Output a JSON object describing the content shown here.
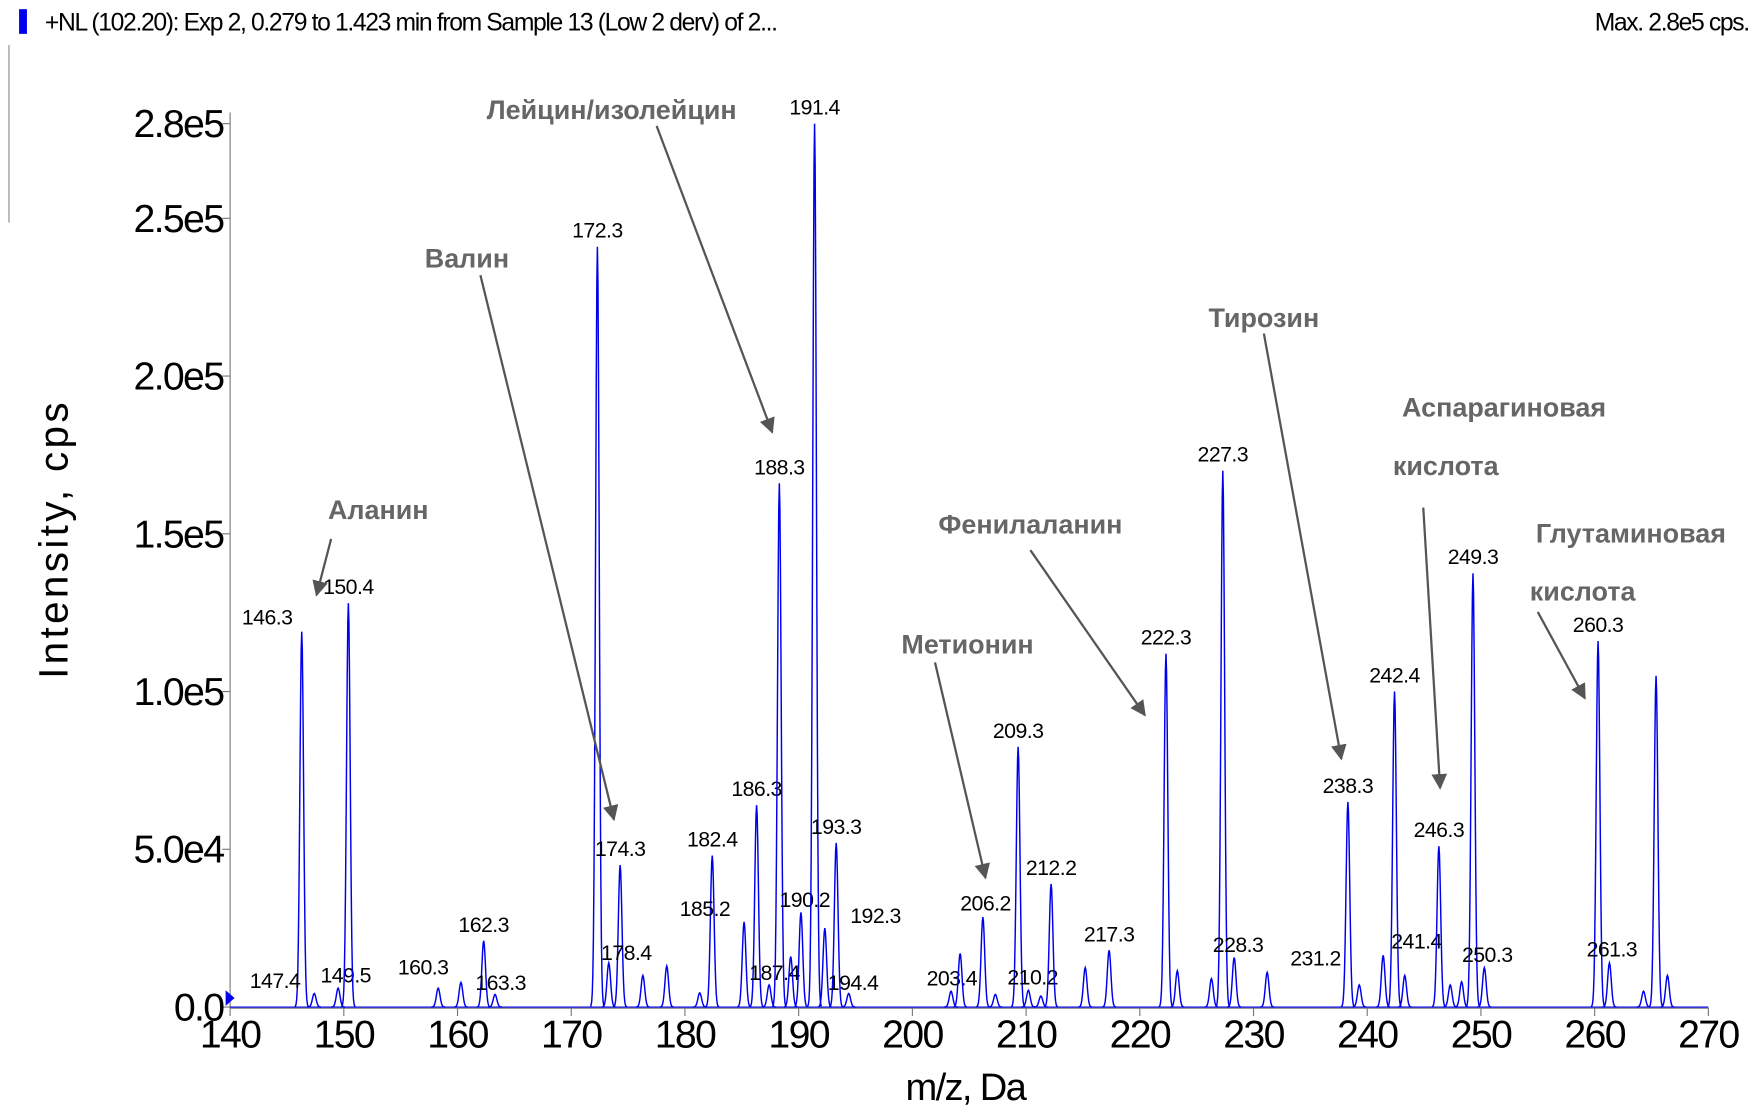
{
  "chart_data": {
    "type": "spectrum",
    "header": "+NL (102.20): Exp 2, 0.279 to 1.423 min from Sample 13 (Low 2 derv) of 2...",
    "max_label": "Max. 2.8e5 cps.",
    "xlabel": "m/z, Da",
    "ylabel": "Intensity, cps",
    "color": "#0000ee",
    "xlim": [
      140,
      270
    ],
    "ylim": [
      0,
      280000
    ],
    "xticks": [
      140,
      150,
      160,
      170,
      180,
      190,
      200,
      210,
      220,
      230,
      240,
      250,
      260,
      270
    ],
    "yticks": [
      {
        "value": 0,
        "label": "0.0"
      },
      {
        "value": 50000,
        "label": "5.0e4"
      },
      {
        "value": 100000,
        "label": "1.0e5"
      },
      {
        "value": 150000,
        "label": "1.5e5"
      },
      {
        "value": 200000,
        "label": "2.0e5"
      },
      {
        "value": 250000,
        "label": "2.5e5"
      },
      {
        "value": 280000,
        "label": "2.8e5"
      }
    ],
    "x": [
      146.3,
      147.4,
      149.5,
      150.4,
      158.3,
      160.3,
      162.3,
      163.3,
      172.3,
      173.3,
      174.3,
      176.3,
      178.4,
      181.3,
      182.4,
      185.2,
      186.3,
      187.4,
      188.3,
      189.3,
      190.2,
      191.4,
      192.3,
      193.3,
      194.4,
      203.4,
      204.2,
      206.2,
      207.3,
      209.3,
      210.2,
      211.3,
      212.2,
      215.2,
      217.3,
      222.3,
      223.3,
      226.3,
      227.3,
      228.3,
      231.2,
      238.3,
      239.3,
      241.4,
      242.4,
      243.3,
      246.3,
      247.3,
      248.3,
      249.3,
      250.3,
      260.3,
      261.3,
      264.3,
      265.4,
      266.4
    ],
    "values": [
      119000,
      4300,
      6000,
      128000,
      6000,
      7800,
      21000,
      4000,
      241000,
      14000,
      45000,
      10000,
      13000,
      4500,
      48000,
      27000,
      64000,
      7000,
      166000,
      16000,
      30000,
      280000,
      25000,
      52000,
      4300,
      5000,
      17000,
      28500,
      4000,
      82500,
      5300,
      3500,
      39000,
      12500,
      18000,
      112000,
      11500,
      9000,
      170000,
      15700,
      11000,
      65000,
      7000,
      16400,
      100000,
      10000,
      51000,
      7000,
      8000,
      137500,
      12500,
      116000,
      14000,
      5000,
      105000,
      10000
    ],
    "peak_labels": [
      "146.3",
      "147.4",
      "149.5",
      "150.4",
      null,
      "160.3",
      "162.3",
      "163.3",
      "172.3",
      null,
      "174.3",
      null,
      "178.4",
      null,
      "182.4",
      "185.2",
      "186.3",
      "187.4",
      "188.3",
      null,
      "190.2",
      "191.4",
      "192.3",
      "193.3",
      "194.4",
      "203.4",
      null,
      "206.2",
      null,
      "209.3",
      "210.2",
      null,
      "212.2",
      null,
      "217.3",
      "222.3",
      null,
      null,
      "227.3",
      "228.3",
      "231.2",
      "238.3",
      null,
      "241.4",
      "242.4",
      null,
      "246.3",
      null,
      null,
      "249.3",
      "250.3",
      "260.3",
      "261.3",
      null,
      null,
      null
    ],
    "annotations": [
      {
        "lines": [
          "Аланин"
        ]
      },
      {
        "lines": [
          "Валин"
        ]
      },
      {
        "lines": [
          "Лейцин/изолейцин"
        ]
      },
      {
        "lines": [
          "Метионин"
        ]
      },
      {
        "lines": [
          "Фенилаланин"
        ]
      },
      {
        "lines": [
          "Тирозин"
        ]
      },
      {
        "lines": [
          "Аспарагиновая",
          "кислота"
        ]
      },
      {
        "lines": [
          "Глутаминовая",
          "кислота"
        ]
      }
    ]
  }
}
